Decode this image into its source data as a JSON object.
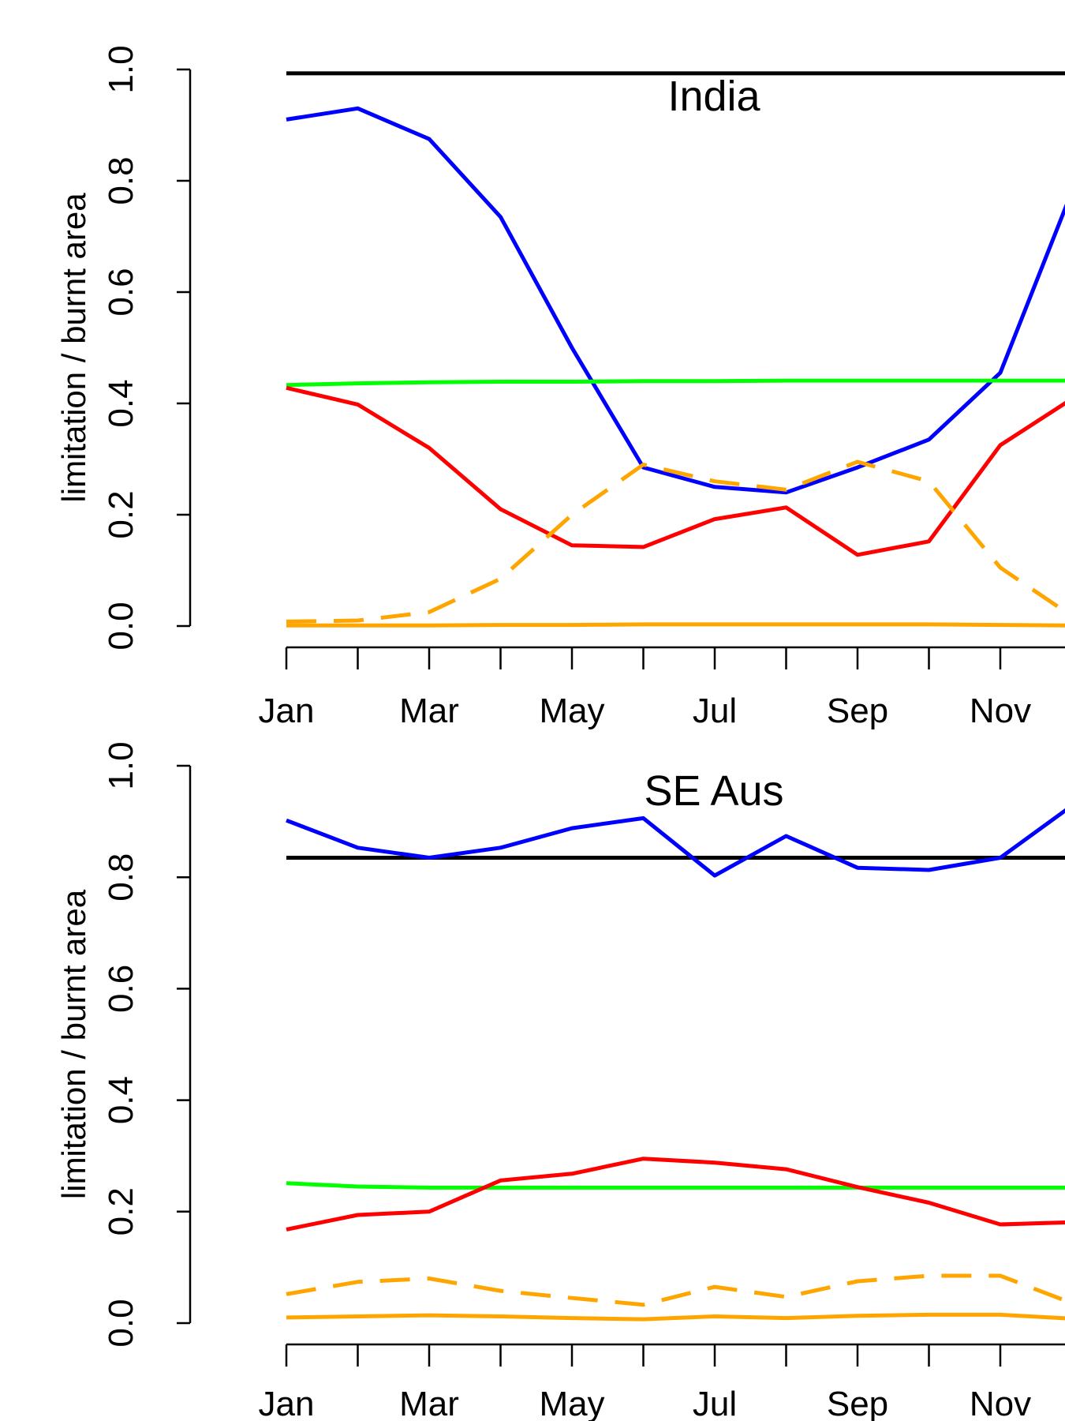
{
  "chart_data": [
    {
      "type": "line",
      "title": "India",
      "xlabel": "",
      "ylabel": "limitation / burnt area",
      "ylim": [
        0,
        1
      ],
      "grid": false,
      "x": [
        1,
        2,
        3,
        4,
        5,
        6,
        7,
        8,
        9,
        10,
        11,
        12
      ],
      "x_tick_labels": [
        "Jan",
        "Mar",
        "May",
        "Jul",
        "Sep",
        "Nov"
      ],
      "x_tick_label_positions": [
        1,
        3,
        5,
        7,
        9,
        11
      ],
      "y_tick_labels": [
        "0.0",
        "0.2",
        "0.4",
        "0.6",
        "0.8",
        "1.0"
      ],
      "series": [
        {
          "color": "#000000",
          "dash": false,
          "values": [
            0.993,
            0.993,
            0.993,
            0.993,
            0.993,
            0.993,
            0.993,
            0.993,
            0.993,
            0.993,
            0.993,
            0.993
          ]
        },
        {
          "color": "#0000ff",
          "dash": false,
          "values": [
            0.91,
            0.93,
            0.875,
            0.735,
            0.5,
            0.285,
            0.25,
            0.24,
            0.285,
            0.335,
            0.455,
            0.78
          ]
        },
        {
          "color": "#00ff00",
          "dash": false,
          "values": [
            0.433,
            0.436,
            0.438,
            0.439,
            0.439,
            0.44,
            0.44,
            0.441,
            0.441,
            0.441,
            0.441,
            0.441
          ]
        },
        {
          "color": "#ff0000",
          "dash": false,
          "values": [
            0.428,
            0.398,
            0.32,
            0.21,
            0.145,
            0.142,
            0.192,
            0.213,
            0.128,
            0.152,
            0.325,
            0.408
          ]
        },
        {
          "color": "#ffa500",
          "dash": true,
          "values": [
            0.008,
            0.01,
            0.025,
            0.085,
            0.2,
            0.29,
            0.26,
            0.245,
            0.295,
            0.26,
            0.105,
            0.018
          ]
        },
        {
          "color": "#ffa500",
          "dash": false,
          "values": [
            0.001,
            0.001,
            0.001,
            0.002,
            0.002,
            0.003,
            0.003,
            0.003,
            0.003,
            0.003,
            0.002,
            0.001
          ]
        }
      ]
    },
    {
      "type": "line",
      "title": "SE Aus",
      "xlabel": "",
      "ylabel": "limitation / burnt area",
      "ylim": [
        0,
        1
      ],
      "grid": false,
      "x": [
        1,
        2,
        3,
        4,
        5,
        6,
        7,
        8,
        9,
        10,
        11,
        12
      ],
      "x_tick_labels": [
        "Jan",
        "Mar",
        "May",
        "Jul",
        "Sep",
        "Nov"
      ],
      "x_tick_label_positions": [
        1,
        3,
        5,
        7,
        9,
        11
      ],
      "y_tick_labels": [
        "0.0",
        "0.2",
        "0.4",
        "0.6",
        "0.8",
        "1.0"
      ],
      "series": [
        {
          "color": "#000000",
          "dash": false,
          "values": [
            0.835,
            0.835,
            0.835,
            0.835,
            0.835,
            0.835,
            0.835,
            0.835,
            0.835,
            0.835,
            0.835,
            0.835
          ]
        },
        {
          "color": "#0000ff",
          "dash": false,
          "values": [
            0.902,
            0.853,
            0.835,
            0.853,
            0.888,
            0.906,
            0.803,
            0.874,
            0.817,
            0.813,
            0.835,
            0.928
          ]
        },
        {
          "color": "#00ff00",
          "dash": false,
          "values": [
            0.251,
            0.245,
            0.243,
            0.243,
            0.243,
            0.243,
            0.243,
            0.243,
            0.243,
            0.243,
            0.243,
            0.243
          ]
        },
        {
          "color": "#ff0000",
          "dash": false,
          "values": [
            0.168,
            0.194,
            0.2,
            0.256,
            0.268,
            0.295,
            0.288,
            0.276,
            0.244,
            0.216,
            0.177,
            0.181
          ]
        },
        {
          "color": "#ffa500",
          "dash": true,
          "values": [
            0.052,
            0.074,
            0.08,
            0.058,
            0.045,
            0.033,
            0.065,
            0.047,
            0.075,
            0.085,
            0.085,
            0.036
          ]
        },
        {
          "color": "#ffa500",
          "dash": false,
          "values": [
            0.01,
            0.012,
            0.014,
            0.012,
            0.009,
            0.007,
            0.012,
            0.009,
            0.013,
            0.015,
            0.015,
            0.008
          ]
        }
      ]
    }
  ]
}
